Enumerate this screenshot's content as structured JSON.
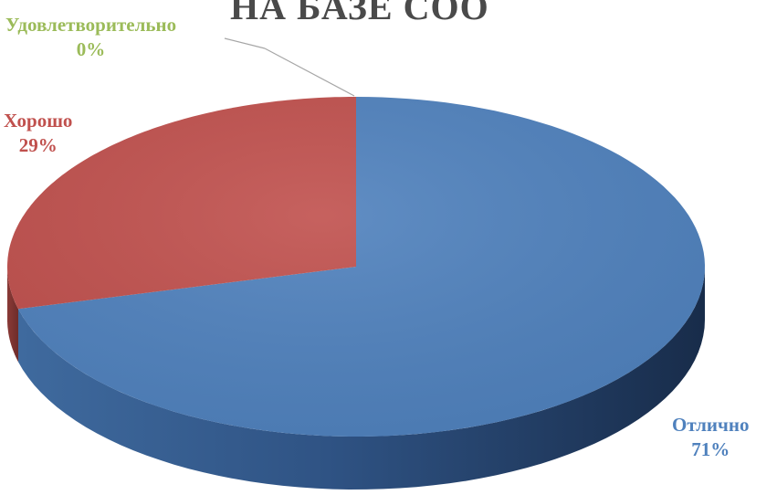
{
  "chart_data": {
    "type": "pie",
    "title": "НА БАЗЕ СОО",
    "slices": [
      {
        "name": "Отлично",
        "value": 71,
        "label": "71%",
        "color": "#4f81bd"
      },
      {
        "name": "Хорошо",
        "value": 29,
        "label": "29%",
        "color": "#c0504d"
      },
      {
        "name": "Удовлетворительно",
        "value": 0,
        "label": "0%",
        "color": "#9bbb59"
      }
    ]
  }
}
